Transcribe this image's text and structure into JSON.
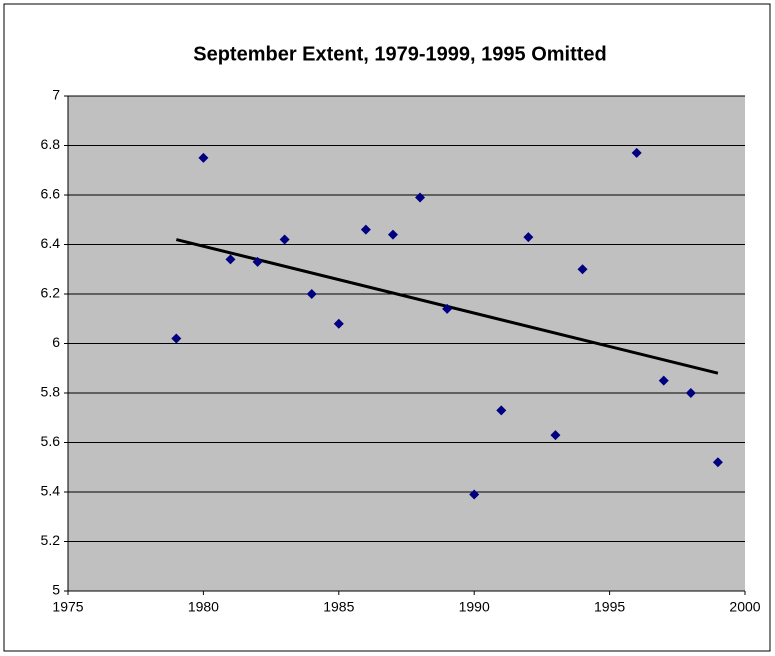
{
  "chart_data": {
    "type": "scatter",
    "title": "September Extent, 1979-1999,   1995 Omitted",
    "x": [
      1979,
      1980,
      1981,
      1982,
      1983,
      1984,
      1985,
      1986,
      1987,
      1988,
      1989,
      1990,
      1991,
      1992,
      1993,
      1994,
      1996,
      1997,
      1998,
      1999
    ],
    "values": [
      6.02,
      6.75,
      6.34,
      6.33,
      6.42,
      6.2,
      6.08,
      6.46,
      6.44,
      6.59,
      6.14,
      5.39,
      5.73,
      6.43,
      5.63,
      6.3,
      6.77,
      5.85,
      5.8,
      5.52
    ],
    "color": "#000080",
    "trendline": {
      "x": [
        1979,
        1999
      ],
      "y": [
        6.42,
        5.88
      ],
      "color": "#000000"
    },
    "xlim": [
      1975,
      2000
    ],
    "xticks": [
      1975,
      1980,
      1985,
      1990,
      1995,
      2000
    ],
    "ylim": [
      5,
      7
    ],
    "yticks": [
      5,
      5.2,
      5.4,
      5.6,
      5.8,
      6,
      6.2,
      6.4,
      6.6,
      6.8,
      7
    ],
    "grid": true,
    "plot_background": "#c0c0c0"
  }
}
